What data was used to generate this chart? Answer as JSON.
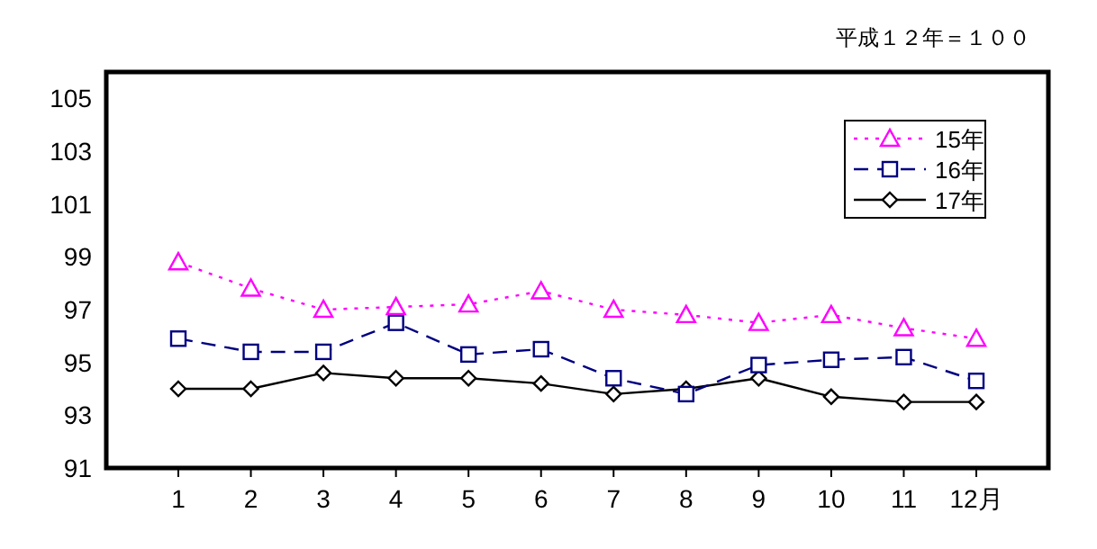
{
  "chart_data": {
    "type": "line",
    "annotations": [
      "平成１２年＝１００"
    ],
    "categories": [
      "1",
      "2",
      "3",
      "4",
      "5",
      "6",
      "7",
      "8",
      "9",
      "10",
      "11",
      "12月"
    ],
    "series": [
      {
        "name": "15年",
        "color": "#ff00ff",
        "marker": "triangle",
        "line_style": "dotted",
        "values": [
          98.8,
          97.8,
          97.0,
          97.1,
          97.2,
          97.7,
          97.0,
          96.8,
          96.5,
          96.8,
          96.3,
          95.9
        ]
      },
      {
        "name": "16年",
        "color": "#000080",
        "marker": "square",
        "line_style": "dashed",
        "values": [
          95.9,
          95.4,
          95.4,
          96.5,
          95.3,
          95.5,
          94.4,
          93.8,
          94.9,
          95.1,
          95.2,
          94.3
        ]
      },
      {
        "name": "17年",
        "color": "#000000",
        "marker": "diamond",
        "line_style": "solid",
        "values": [
          94.0,
          94.0,
          94.6,
          94.4,
          94.4,
          94.2,
          93.8,
          94.0,
          94.4,
          93.7,
          93.5,
          93.5
        ]
      }
    ],
    "ylim": [
      91,
      106
    ],
    "yticks": [
      91,
      93,
      95,
      97,
      99,
      101,
      103,
      105
    ],
    "grid": false,
    "legend": "top right"
  }
}
